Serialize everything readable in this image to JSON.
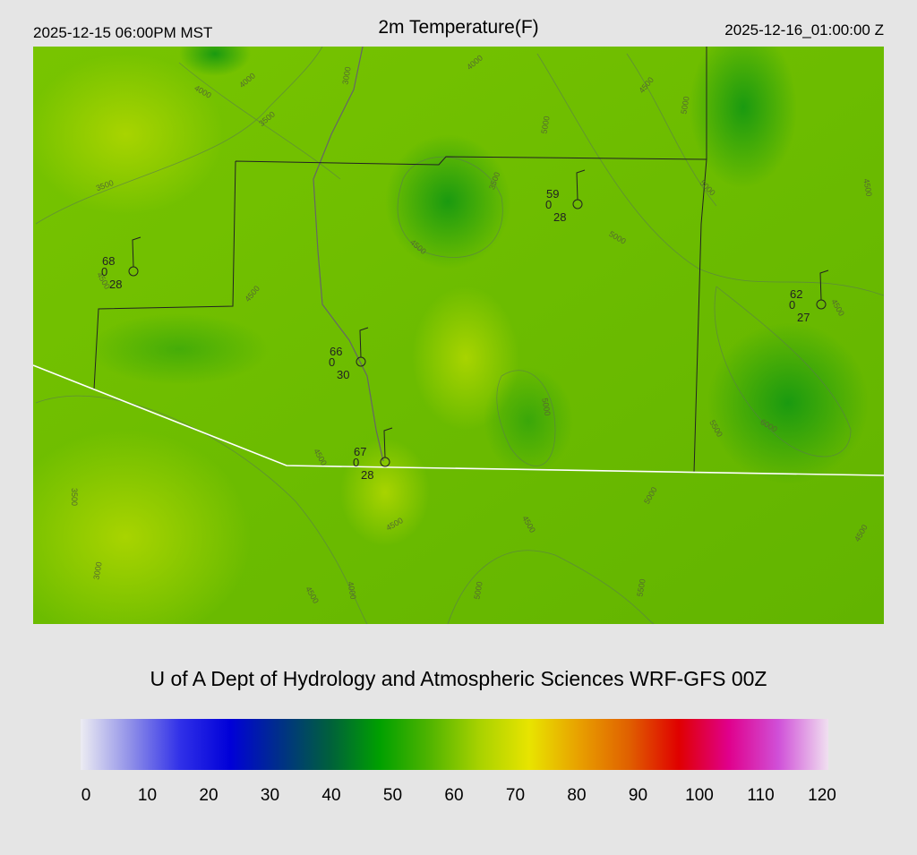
{
  "header": {
    "valid_local": "2025-12-15 06:00PM MST",
    "title": "2m Temperature(F)",
    "valid_utc": "2025-12-16_01:00:00 Z"
  },
  "map": {
    "contour_labels": [
      "4000",
      "4000",
      "3500",
      "3000",
      "4000",
      "4500",
      "5000",
      "5000",
      "3500",
      "3500",
      "5000",
      "5000",
      "4500",
      "4500",
      "4500",
      "5000",
      "5500",
      "6000",
      "4500",
      "3500",
      "4500",
      "4500",
      "5000",
      "3000",
      "4000",
      "4500",
      "5000",
      "5500",
      "4500",
      "4500",
      "4500"
    ],
    "stations": [
      {
        "temperature": 68,
        "wind": 0,
        "dewpoint": 28
      },
      {
        "temperature": 59,
        "wind": 0,
        "dewpoint": 28
      },
      {
        "temperature": 62,
        "wind": 0,
        "dewpoint": 27
      },
      {
        "temperature": 66,
        "wind": 0,
        "dewpoint": 30
      },
      {
        "temperature": 67,
        "wind": 0,
        "dewpoint": 28
      }
    ]
  },
  "footer": {
    "credit": "U of A Dept of Hydrology and Atmospheric Sciences WRF-GFS 00Z"
  },
  "colorbar": {
    "ticks": [
      0,
      10,
      20,
      30,
      40,
      50,
      60,
      70,
      80,
      90,
      100,
      110,
      120
    ],
    "colors": [
      "#ececf2",
      "#9090e8",
      "#3030e8",
      "#0000d8",
      "#003088",
      "#00603c",
      "#00a000",
      "#50b400",
      "#a8d200",
      "#e8e400",
      "#e8a000",
      "#e06000",
      "#e00000",
      "#e0008c",
      "#d050d8",
      "#f0e0f0"
    ]
  }
}
